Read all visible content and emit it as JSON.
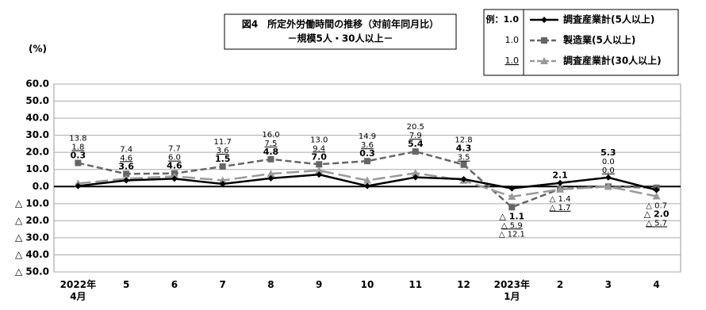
{
  "chart_data": {
    "type": "line",
    "title": "図4　所定外労働時間の推移（対前年同月比）",
    "subtitle": "－規模5人・30人以上－",
    "y_label": "(%)",
    "categories": [
      "2022年\n4月",
      "5",
      "6",
      "7",
      "8",
      "9",
      "10",
      "11",
      "12",
      "2023年\n1月",
      "2",
      "3",
      "4"
    ],
    "ylim": [
      -50,
      60
    ],
    "yticks": [
      {
        "value": 60,
        "label": "60.0"
      },
      {
        "value": 50,
        "label": "50.0"
      },
      {
        "value": 40,
        "label": "40.0"
      },
      {
        "value": 30,
        "label": "30.0"
      },
      {
        "value": 20,
        "label": "20.0"
      },
      {
        "value": 10,
        "label": "10.0"
      },
      {
        "value": 0,
        "label": "0.0"
      },
      {
        "value": -10,
        "label": "△ 10.0"
      },
      {
        "value": -20,
        "label": "△ 20.0"
      },
      {
        "value": -30,
        "label": "△ 30.0"
      },
      {
        "value": -40,
        "label": "△ 40.0"
      },
      {
        "value": -50,
        "label": "△ 50.0"
      }
    ],
    "grid": true,
    "series": [
      {
        "name": "調査産業計(5人以上)",
        "color": "#000000",
        "marker": "diamond",
        "dashed": false,
        "label_style": "bold",
        "sample": "例：1.0",
        "values": [
          0.3,
          3.6,
          4.6,
          1.5,
          4.8,
          7.0,
          0.3,
          5.4,
          4.3,
          -1.1,
          2.1,
          5.3,
          -2.0
        ],
        "value_labels": [
          "0.3",
          "3.6",
          "4.6",
          "1.5",
          "4.8",
          "7.0",
          "0.3",
          "5.4",
          "4.3",
          "△ 1.1",
          "2.1",
          "5.3",
          "△ 2.0"
        ]
      },
      {
        "name": "製造業(5人以上)",
        "color": "#666666",
        "marker": "square",
        "dashed": true,
        "label_style": "plain",
        "sample": "1.0",
        "values": [
          13.8,
          7.4,
          7.7,
          11.7,
          16.0,
          13.0,
          14.9,
          20.5,
          12.8,
          -12.1,
          -1.4,
          0.0,
          -0.7
        ],
        "value_labels": [
          "13.8",
          "7.4",
          "7.7",
          "11.7",
          "16.0",
          "13.0",
          "14.9",
          "20.5",
          "12.8",
          "△ 12.1",
          "△ 1.4",
          "0.0",
          "△ 0.7"
        ]
      },
      {
        "name": "調査産業計(30人以上)",
        "color": "#999999",
        "marker": "triangle",
        "dashed": true,
        "label_style": "underline",
        "sample": "1.0",
        "values": [
          1.8,
          4.6,
          6.0,
          3.6,
          7.5,
          9.4,
          3.6,
          7.9,
          3.5,
          -5.9,
          -1.7,
          0.0,
          -5.7
        ],
        "value_labels": [
          "1.8",
          "4.6",
          "6.0",
          "3.6",
          "7.5",
          "9.4",
          "3.6",
          "7.9",
          "3.5",
          "△ 5.9",
          "△ 1.7",
          "0.0",
          "△ 5.7"
        ]
      }
    ]
  }
}
